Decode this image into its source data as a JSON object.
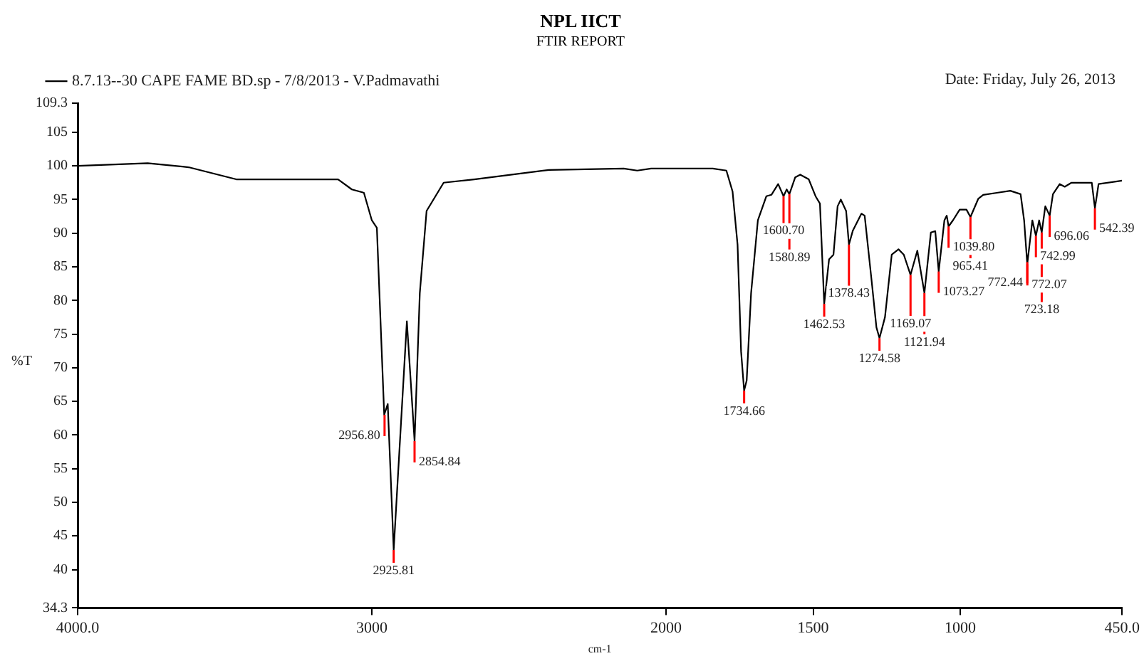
{
  "chart_data": {
    "type": "line",
    "title": "NPL IICT",
    "subtitle": "FTIR REPORT",
    "xlabel": "cm-1",
    "ylabel": "%T",
    "legend": "top left",
    "grid": false,
    "marker": "none",
    "xlim": [
      4000,
      450
    ],
    "xticks": [
      {
        "value": 4000,
        "label": "4000.0"
      },
      3000,
      2000,
      1500,
      1000,
      {
        "value": 450,
        "label": "450.0"
      }
    ],
    "ylim": [
      34.3,
      109.3
    ],
    "yticks": [
      34.3,
      40,
      45,
      50,
      55,
      60,
      65,
      70,
      75,
      80,
      85,
      90,
      95,
      100,
      105,
      109.3
    ],
    "series": [
      {
        "name": "8.7.13--30 CAPE FAME BD.sp - 7/8/2013 - V.Padmavathi",
        "color": "#000000",
        "x": [
          4000,
          3762,
          3623,
          3461,
          3115,
          3068,
          3027,
          3000,
          2983,
          2958,
          2946,
          2925.8,
          2881,
          2854.8,
          2837,
          2814,
          2756,
          2652,
          2398,
          2144,
          2098,
          2051,
          1841,
          1795,
          1774,
          1757,
          1745,
          1734.7,
          1726,
          1711,
          1688,
          1659,
          1642,
          1619,
          1600.7,
          1590,
          1580.9,
          1561,
          1544,
          1515,
          1492,
          1477,
          1462.5,
          1446,
          1431,
          1417,
          1406,
          1388,
          1378.4,
          1365,
          1336,
          1325,
          1302,
          1285,
          1274.6,
          1256,
          1233,
          1210,
          1192,
          1169.1,
          1146,
          1121.9,
          1100,
          1085,
          1073.3,
          1054,
          1046,
          1039.8,
          1025,
          1002,
          979,
          965.4,
          939,
          922,
          876,
          830,
          795,
          783,
          772.3,
          755,
          743,
          732,
          723.2,
          711,
          696.1,
          685,
          662,
          645,
          622,
          553,
          542.4,
          530,
          450
        ],
        "values": [
          100.0,
          100.4,
          99.8,
          98.0,
          98.0,
          96.5,
          96.0,
          91.9,
          90.8,
          63.0,
          64.6,
          42.9,
          76.9,
          59.1,
          81.1,
          93.3,
          97.5,
          98.0,
          99.4,
          99.6,
          99.3,
          99.6,
          99.6,
          99.3,
          96.2,
          88.3,
          72.4,
          66.6,
          68.1,
          81.1,
          91.9,
          95.5,
          95.7,
          97.3,
          95.5,
          96.5,
          95.8,
          98.3,
          98.7,
          98.0,
          95.5,
          94.4,
          79.5,
          86.1,
          86.8,
          94.0,
          95.0,
          93.3,
          88.3,
          90.4,
          92.9,
          92.6,
          83.2,
          76.0,
          74.4,
          77.5,
          86.8,
          87.6,
          86.8,
          83.8,
          87.4,
          81.1,
          90.1,
          90.3,
          84.3,
          91.9,
          92.6,
          91.0,
          91.9,
          93.5,
          93.5,
          92.4,
          95.1,
          95.7,
          96.0,
          96.3,
          95.8,
          91.9,
          85.4,
          91.9,
          89.6,
          91.9,
          90.1,
          94.0,
          92.6,
          95.8,
          97.3,
          96.9,
          97.5,
          97.5,
          93.7,
          97.3,
          97.8
        ]
      }
    ],
    "annotations": [
      "Date: Friday, July 26, 2013",
      {
        "text": "2956.80",
        "x": 2956.8,
        "y": 63.0
      },
      {
        "text": "2925.81",
        "x": 2925.81,
        "y": 42.9
      },
      {
        "text": "2854.84",
        "x": 2854.84,
        "y": 59.1
      },
      {
        "text": "1734.66",
        "x": 1734.66,
        "y": 66.6
      },
      {
        "text": "1600.70",
        "x": 1600.7,
        "y": 95.5
      },
      {
        "text": "1580.89",
        "x": 1580.89,
        "y": 95.8
      },
      {
        "text": "1462.53",
        "x": 1462.53,
        "y": 79.5
      },
      {
        "text": "1378.43",
        "x": 1378.43,
        "y": 88.3
      },
      {
        "text": "1274.58",
        "x": 1274.58,
        "y": 74.4
      },
      {
        "text": "1169.07",
        "x": 1169.07,
        "y": 83.8
      },
      {
        "text": "1121.94",
        "x": 1121.94,
        "y": 81.1
      },
      {
        "text": "1073.27",
        "x": 1073.27,
        "y": 84.3
      },
      {
        "text": "1039.80",
        "x": 1039.8,
        "y": 91.0
      },
      {
        "text": "965.41",
        "x": 965.41,
        "y": 92.4
      },
      {
        "text": "772.44",
        "x": 772.44,
        "y": 85.7
      },
      {
        "text": "772.07",
        "x": 772.07,
        "y": 85.4
      },
      {
        "text": "742.99",
        "x": 742.99,
        "y": 89.6
      },
      {
        "text": "723.18",
        "x": 723.18,
        "y": 90.1
      },
      {
        "text": "696.06",
        "x": 696.06,
        "y": 92.6
      },
      {
        "text": "542.39",
        "x": 542.39,
        "y": 93.7
      }
    ]
  }
}
